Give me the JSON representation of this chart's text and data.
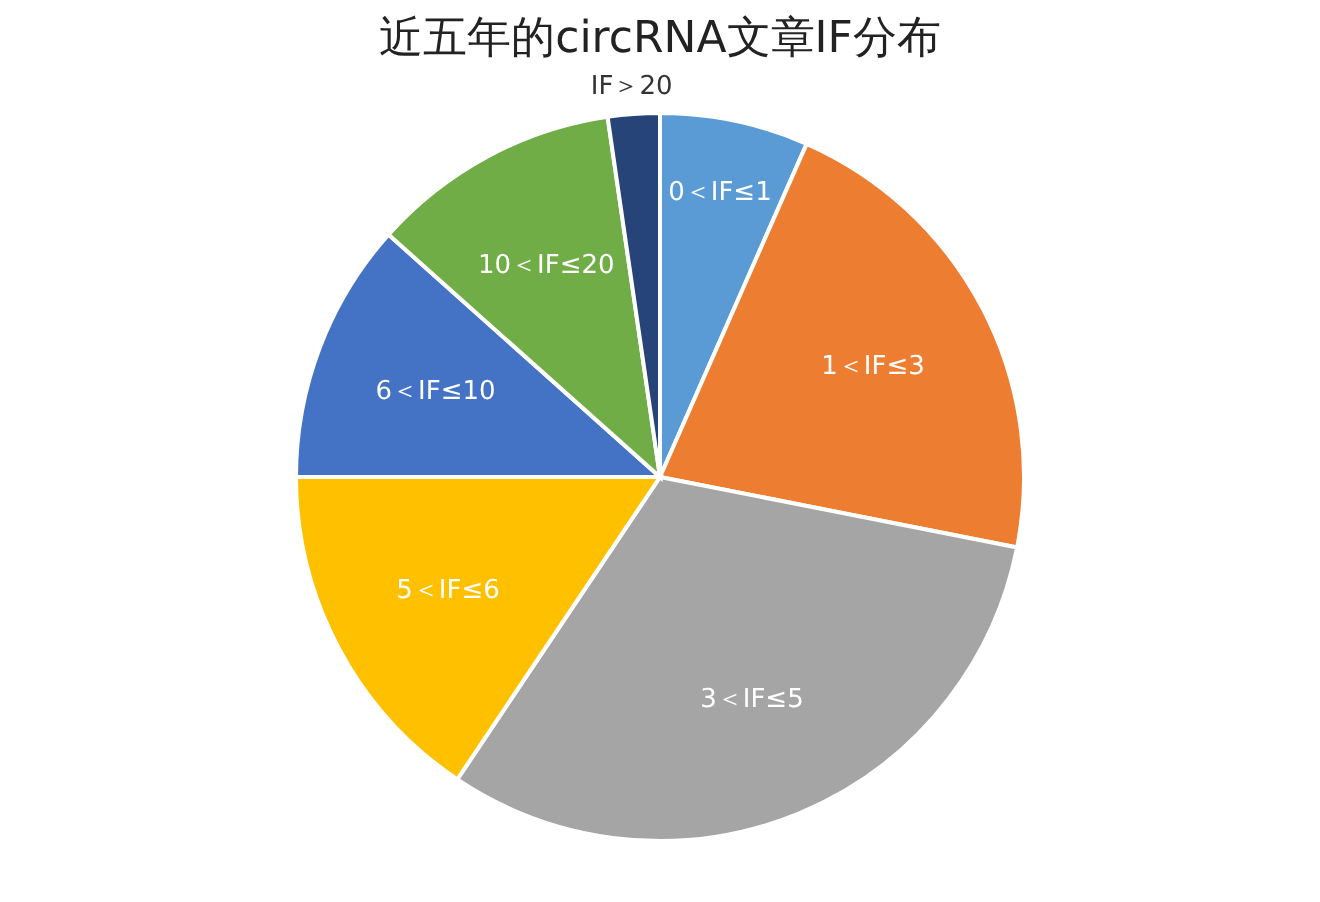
{
  "chart_data": {
    "type": "pie",
    "title": "近五年的circRNA文章IF分布",
    "categories": [
      "0＜IF≤1",
      "1＜IF≤3",
      "3＜IF≤5",
      "5＜IF≤6",
      "6＜IF≤10",
      "10＜IF≤20",
      "IF＞20"
    ],
    "values": [
      6.6,
      21.5,
      31.3,
      15.6,
      11.6,
      11.1,
      2.3
    ],
    "colors": [
      "#5b9bd5",
      "#ed7d31",
      "#a5a5a5",
      "#ffc000",
      "#4472c4",
      "#70ad47",
      "#264478"
    ],
    "legend": false
  }
}
